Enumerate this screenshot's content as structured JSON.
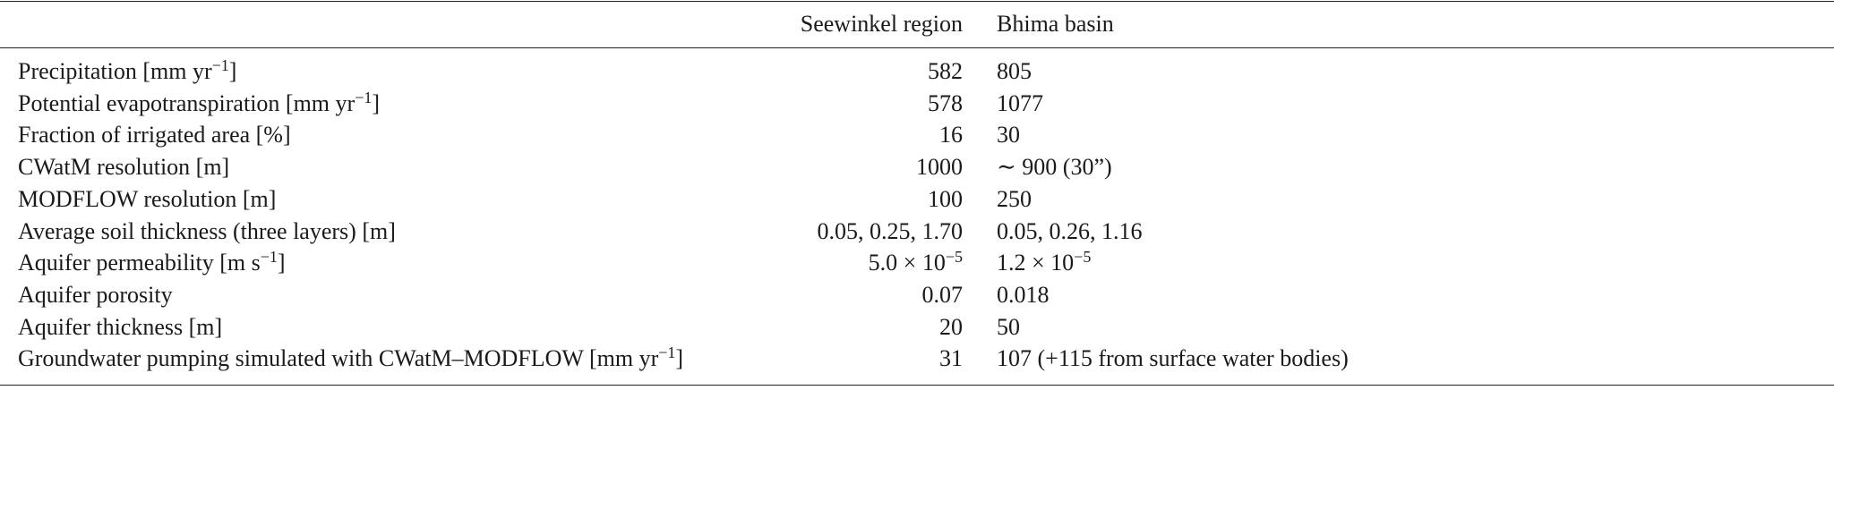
{
  "table": {
    "header": [
      "Seewinkel region",
      "Bhima basin"
    ],
    "rows": [
      {
        "label": [
          "Precipitation [mm yr",
          {
            "sup": "−1"
          },
          "]"
        ],
        "seewinkel": [
          "582"
        ],
        "bhima": [
          "805"
        ]
      },
      {
        "label": [
          "Potential evapotranspiration [mm yr",
          {
            "sup": "−1"
          },
          "]"
        ],
        "seewinkel": [
          "578"
        ],
        "bhima": [
          "1077"
        ]
      },
      {
        "label": [
          "Fraction of irrigated area [%]"
        ],
        "seewinkel": [
          "16"
        ],
        "bhima": [
          "30"
        ]
      },
      {
        "label": [
          "CWatM resolution [m]"
        ],
        "seewinkel": [
          "1000"
        ],
        "bhima": [
          "∼ 900 (30”)"
        ]
      },
      {
        "label": [
          "MODFLOW resolution [m]"
        ],
        "seewinkel": [
          "100"
        ],
        "bhima": [
          "250"
        ]
      },
      {
        "label": [
          "Average soil thickness (three layers) [m]"
        ],
        "seewinkel": [
          "0.05, 0.25, 1.70"
        ],
        "bhima": [
          "0.05, 0.26, 1.16"
        ]
      },
      {
        "label": [
          "Aquifer permeability [m s",
          {
            "sup": "−1"
          },
          "]"
        ],
        "seewinkel": [
          "5.0 × 10",
          {
            "sup": "−5"
          }
        ],
        "bhima": [
          "1.2 × 10",
          {
            "sup": "−5"
          }
        ]
      },
      {
        "label": [
          "Aquifer porosity"
        ],
        "seewinkel": [
          "0.07"
        ],
        "bhima": [
          "0.018"
        ]
      },
      {
        "label": [
          "Aquifer thickness [m]"
        ],
        "seewinkel": [
          "20"
        ],
        "bhima": [
          "50"
        ]
      },
      {
        "label": [
          "Groundwater pumping simulated with CWatM–MODFLOW [mm yr",
          {
            "sup": "−1"
          },
          "]"
        ],
        "seewinkel": [
          "31"
        ],
        "bhima": [
          "107 (+115 from surface water bodies)"
        ]
      }
    ]
  }
}
